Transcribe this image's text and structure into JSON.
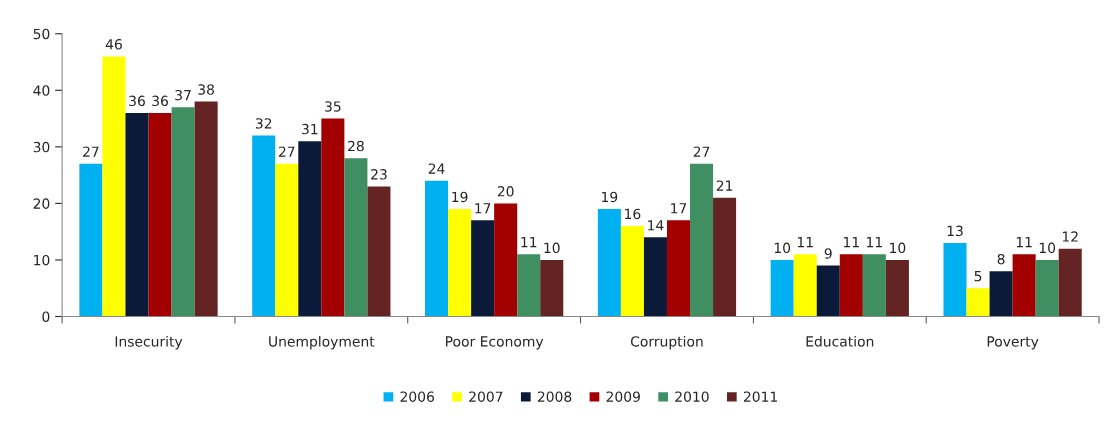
{
  "chart_data": {
    "type": "bar",
    "categories": [
      "Insecurity",
      "Unemployment",
      "Poor Economy",
      "Corruption",
      "Education",
      "Poverty"
    ],
    "series": [
      {
        "name": "2006",
        "color": "#00b0f0",
        "values": [
          27,
          32,
          24,
          19,
          10,
          13
        ]
      },
      {
        "name": "2007",
        "color": "#ffff00",
        "values": [
          46,
          27,
          19,
          16,
          11,
          5
        ]
      },
      {
        "name": "2008",
        "color": "#0c1a3a",
        "values": [
          36,
          31,
          17,
          14,
          9,
          8
        ]
      },
      {
        "name": "2009",
        "color": "#a20000",
        "values": [
          36,
          35,
          20,
          17,
          11,
          11
        ]
      },
      {
        "name": "2010",
        "color": "#3f8f63",
        "values": [
          37,
          28,
          11,
          27,
          11,
          10
        ]
      },
      {
        "name": "2011",
        "color": "#652424",
        "values": [
          38,
          23,
          10,
          21,
          10,
          12
        ]
      }
    ],
    "ylim": [
      0,
      50
    ],
    "yticks": [
      0,
      10,
      20,
      30,
      40,
      50
    ],
    "grid": false,
    "legend": "bottom",
    "data_labels": true
  }
}
